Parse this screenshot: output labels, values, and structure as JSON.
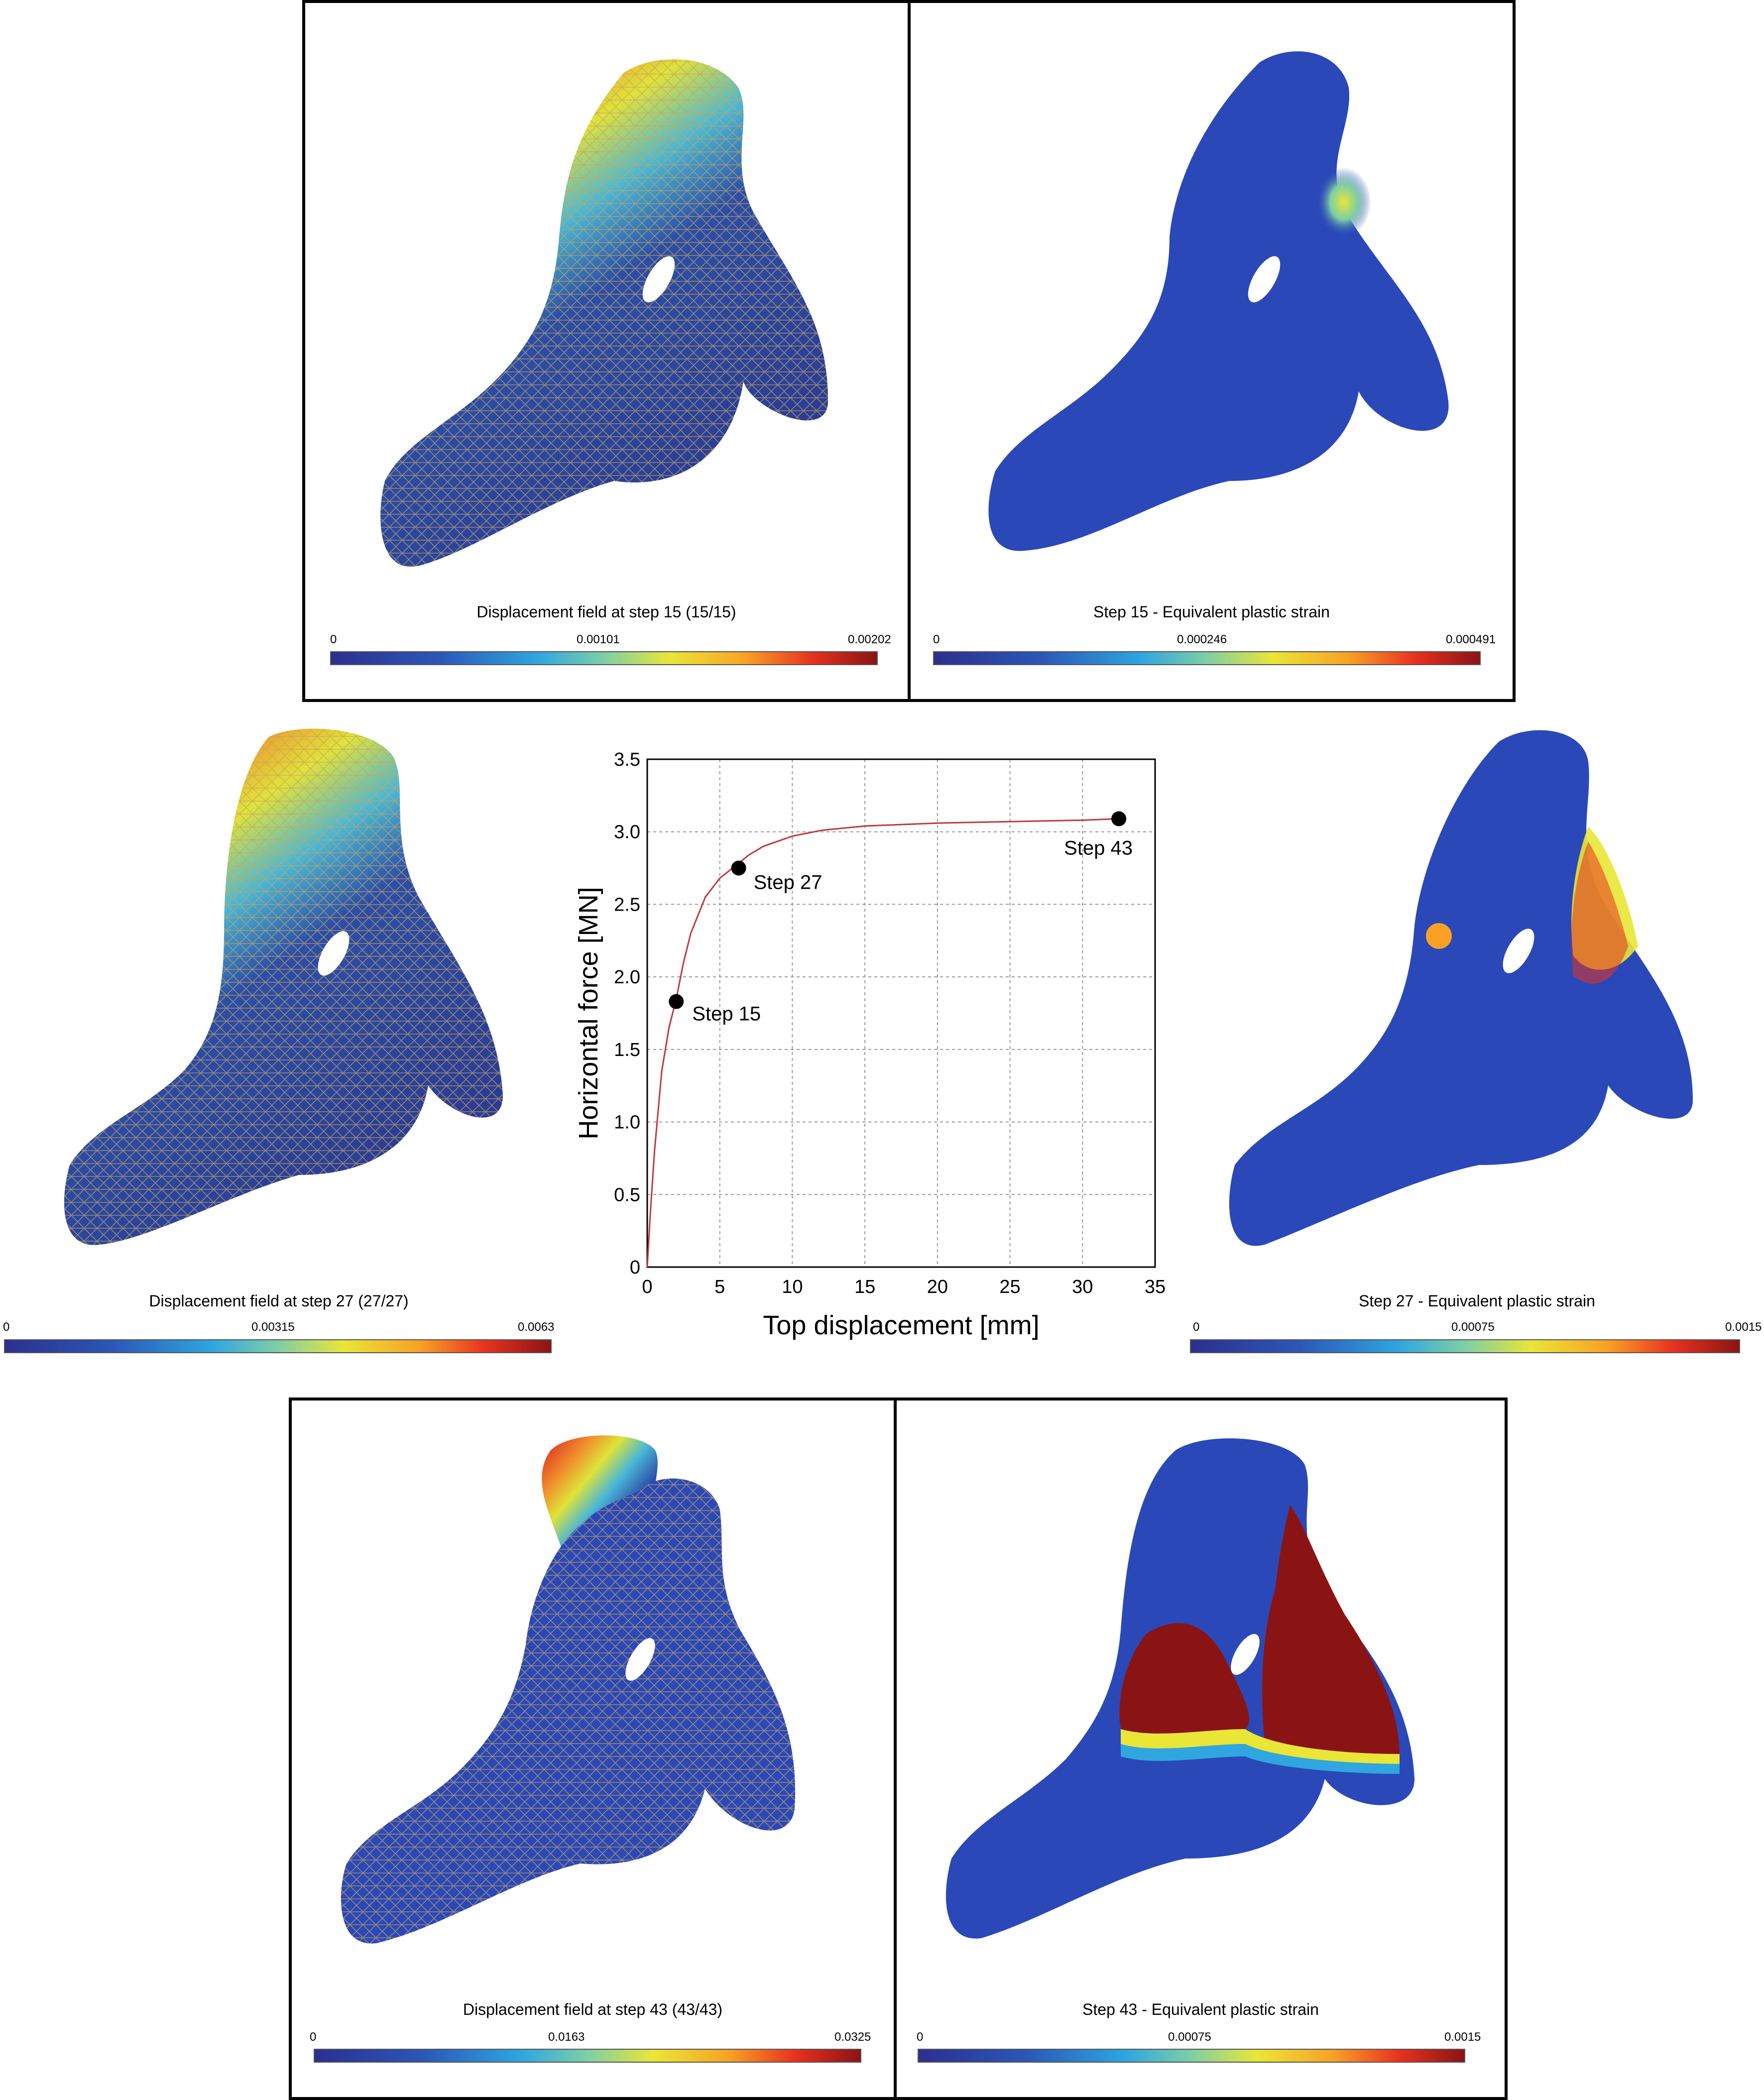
{
  "panels": [
    {
      "id": "p15d",
      "title": "Displacement field at step 15 (15/15)",
      "min": "0",
      "mid": "0.00101",
      "max": "0.00202"
    },
    {
      "id": "p15s",
      "title": "Step 15 - Equivalent plastic strain",
      "min": "0",
      "mid": "0.000246",
      "max": "0.000491"
    },
    {
      "id": "p27d",
      "title": "Displacement field at step 27 (27/27)",
      "min": "0",
      "mid": "0.00315",
      "max": "0.0063"
    },
    {
      "id": "p27s",
      "title": "Step 27 - Equivalent plastic strain",
      "min": "0",
      "mid": "0.00075",
      "max": "0.0015"
    },
    {
      "id": "p43d",
      "title": "Displacement field at step 43 (43/43)",
      "min": "0",
      "mid": "0.0163",
      "max": "0.0325"
    },
    {
      "id": "p43s",
      "title": "Step 43 - Equivalent plastic strain",
      "min": "0",
      "mid": "0.00075",
      "max": "0.0015"
    }
  ],
  "colors": {
    "colormap": [
      "#2c2f8f",
      "#2b58b8",
      "#2fa6e0",
      "#7dcfa5",
      "#e9e637",
      "#f8a125",
      "#e8321f",
      "#8a1414"
    ],
    "curve": "#c0393b",
    "grid": "#999999",
    "marker": "#000000"
  },
  "chart_data": {
    "type": "line",
    "xlabel": "Top displacement [mm]",
    "ylabel": "Horizontal force [MN]",
    "xlim": [
      0,
      35
    ],
    "ylim": [
      0,
      3.5
    ],
    "xticks": [
      "0",
      "5",
      "10",
      "15",
      "20",
      "25",
      "30",
      "35"
    ],
    "yticks": [
      "0",
      "0.5",
      "1.0",
      "1.5",
      "2.0",
      "2.5",
      "3.0",
      "3.5"
    ],
    "grid": true,
    "series": [
      {
        "x": [
          0,
          0.2,
          0.5,
          1.0,
          1.5,
          2.0,
          2.5,
          3.0,
          4.0,
          5.0,
          6.0,
          7.0,
          8.0,
          10.0,
          12.0,
          15.0,
          20.0,
          25.0,
          30.0,
          32.5
        ],
        "y": [
          0,
          0.35,
          0.8,
          1.35,
          1.65,
          1.85,
          2.1,
          2.3,
          2.55,
          2.68,
          2.76,
          2.84,
          2.9,
          2.97,
          3.01,
          3.04,
          3.06,
          3.07,
          3.08,
          3.09
        ]
      }
    ],
    "annotations": [
      {
        "x": 2.0,
        "y": 1.83,
        "label": "Step 15"
      },
      {
        "x": 6.3,
        "y": 2.75,
        "label": "Step 27"
      },
      {
        "x": 32.5,
        "y": 3.09,
        "label": "Step 43"
      }
    ]
  }
}
